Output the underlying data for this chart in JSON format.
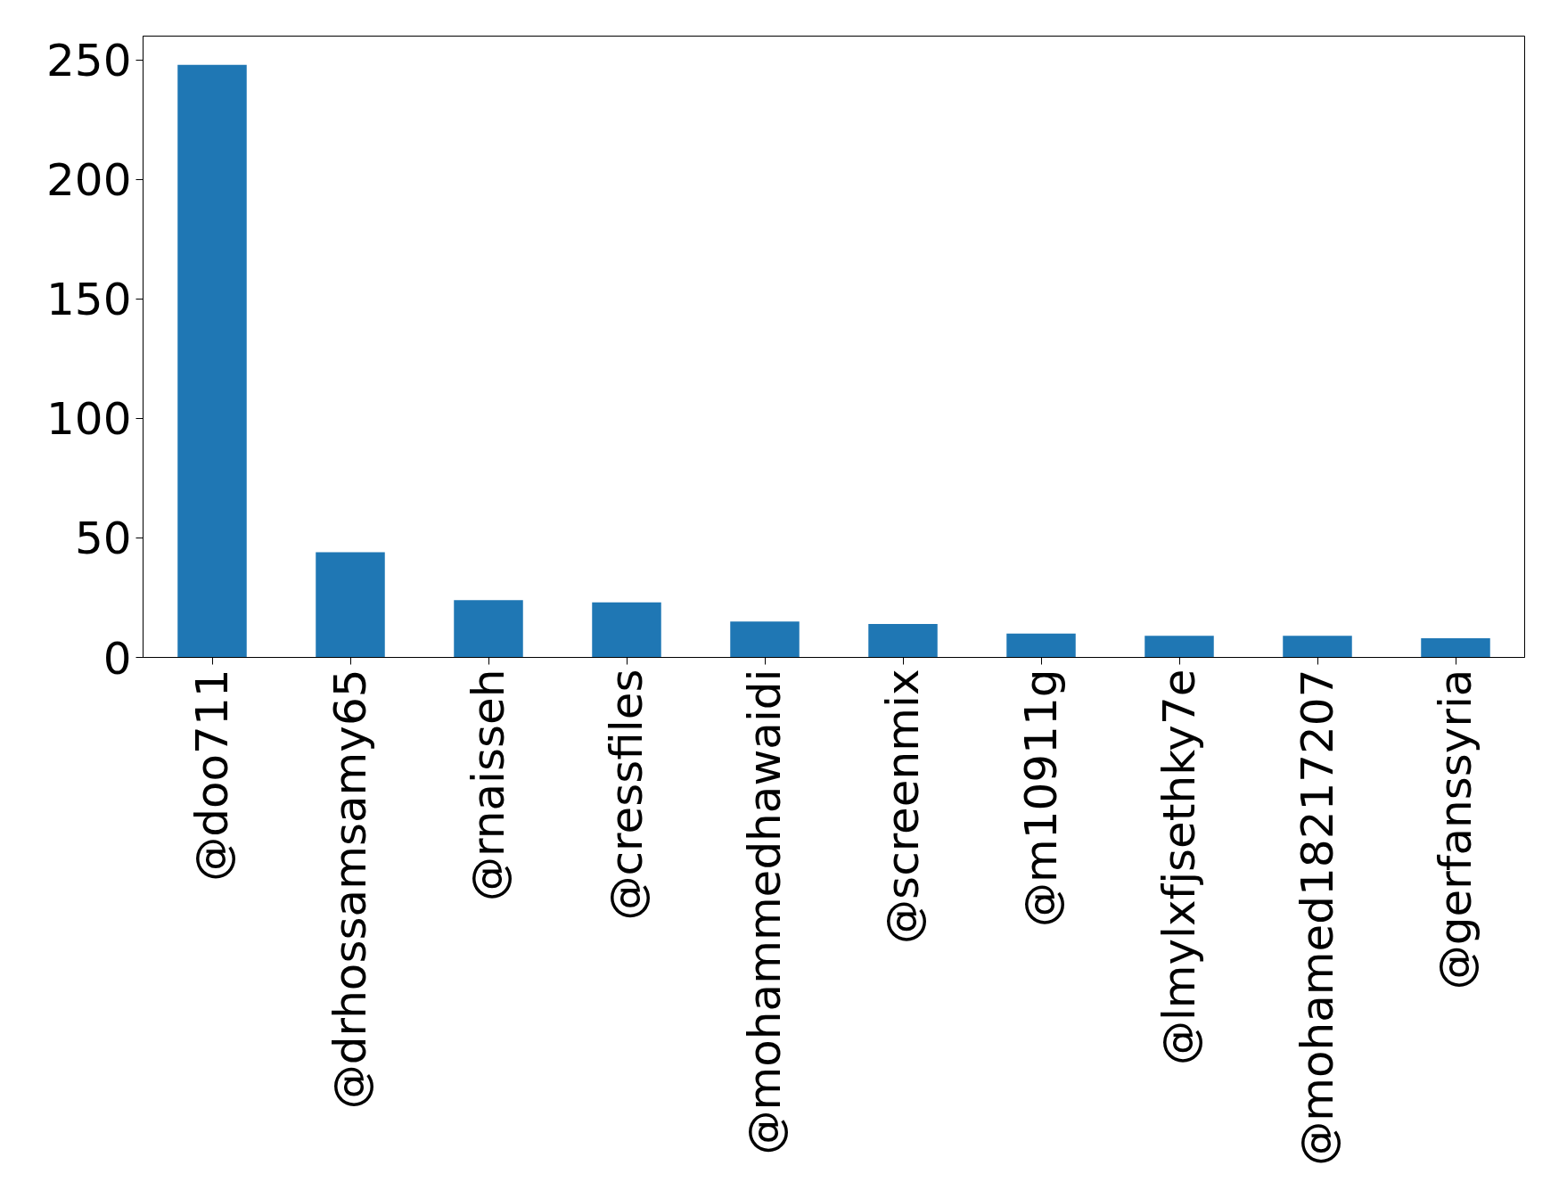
{
  "chart_data": {
    "type": "bar",
    "categories": [
      "@doo711",
      "@drhossamsamy65",
      "@rnaisseh",
      "@cressfiles",
      "@mohammedhawaidi",
      "@screenmix",
      "@m10911g",
      "@lmylxfjsethky7e",
      "@mohamed18217207",
      "@gerfanssyria"
    ],
    "values": [
      248,
      44,
      24,
      23,
      15,
      14,
      10,
      9,
      9,
      8
    ],
    "color": "#1f77b4",
    "ylim": [
      0,
      260
    ],
    "yticks": [
      0,
      50,
      100,
      150,
      200,
      250
    ],
    "grid": false
  }
}
